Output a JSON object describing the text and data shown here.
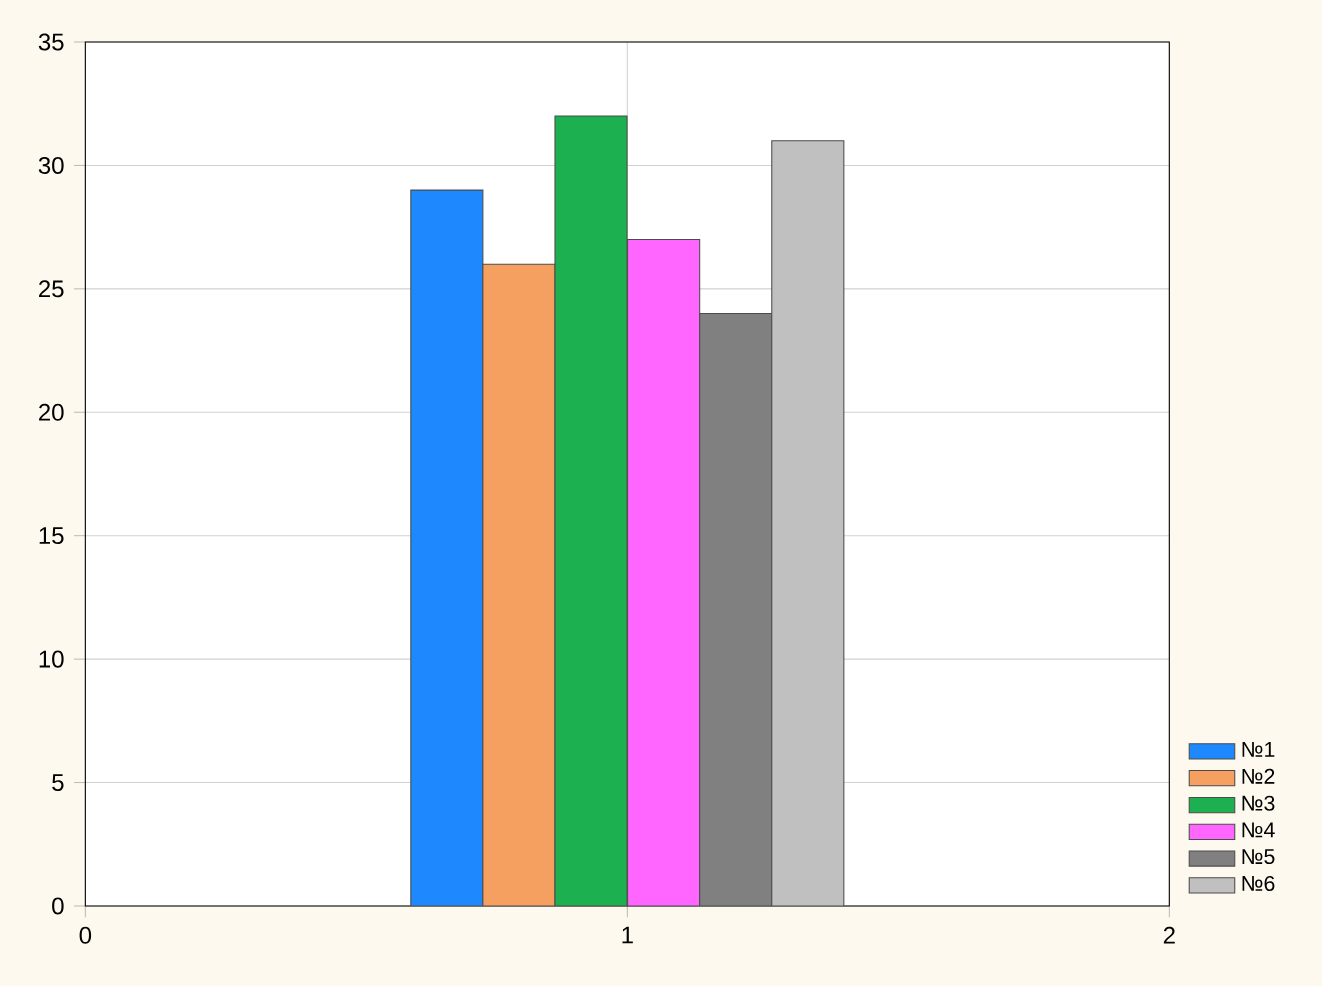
{
  "chart_data": {
    "type": "bar",
    "xlim": [
      0,
      2
    ],
    "xticks": [
      0,
      1,
      2
    ],
    "ylim": [
      0,
      35
    ],
    "yticks": [
      0,
      5,
      10,
      15,
      20,
      25,
      30,
      35
    ],
    "grid": true,
    "legend": "bottom right",
    "series": [
      {
        "name": "№1",
        "color": "#1e88ff",
        "x": [
          0.667
        ],
        "values": [
          29
        ]
      },
      {
        "name": "№2",
        "color": "#f5a060",
        "x": [
          0.8
        ],
        "values": [
          26
        ]
      },
      {
        "name": "№3",
        "color": "#1db050",
        "x": [
          0.933
        ],
        "values": [
          32
        ]
      },
      {
        "name": "№4",
        "color": "#ff66ff",
        "x": [
          1.067
        ],
        "values": [
          27
        ]
      },
      {
        "name": "№5",
        "color": "#808080",
        "x": [
          1.2
        ],
        "values": [
          24
        ]
      },
      {
        "name": "№6",
        "color": "#c0c0c0",
        "x": [
          1.333
        ],
        "values": [
          31
        ]
      }
    ]
  }
}
